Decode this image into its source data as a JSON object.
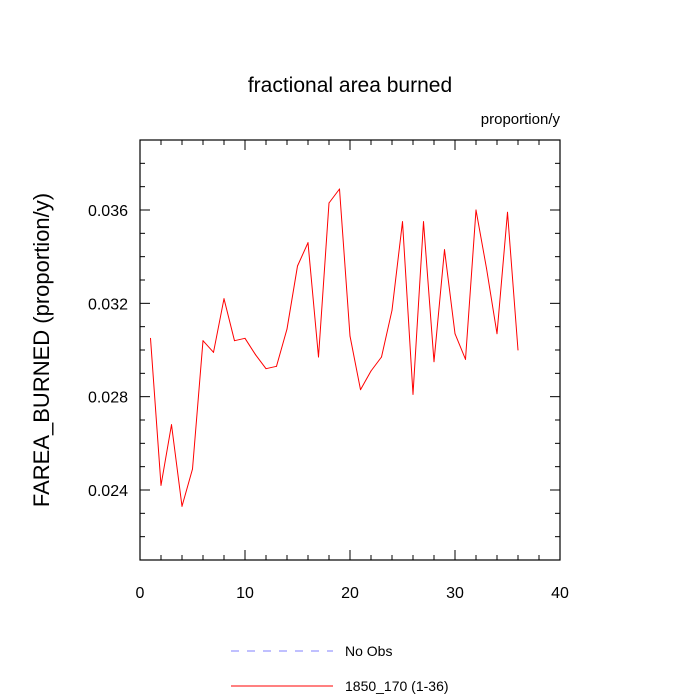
{
  "chart_data": {
    "type": "line",
    "title": "fractional area burned",
    "units_label": "proportion/y",
    "xlabel": "",
    "ylabel": "FAREA_BURNED  (proportion/y)",
    "xlim": [
      0,
      40
    ],
    "ylim": [
      0.021,
      0.039
    ],
    "x_ticks": [
      0,
      10,
      20,
      30,
      40
    ],
    "y_ticks": [
      0.024,
      0.028,
      0.032,
      0.036
    ],
    "y_tick_labels": [
      "0.024",
      "0.028",
      "0.032",
      "0.036"
    ],
    "grid": false,
    "legend_position": "bottom",
    "series": [
      {
        "name": "1850_170 (1-36)",
        "color": "#ff0000",
        "style": "solid",
        "x": [
          1,
          2,
          3,
          4,
          5,
          6,
          7,
          8,
          9,
          10,
          11,
          12,
          13,
          14,
          15,
          16,
          17,
          18,
          19,
          20,
          21,
          22,
          23,
          24,
          25,
          26,
          27,
          28,
          29,
          30,
          31,
          32,
          33,
          34,
          35,
          36
        ],
        "y": [
          0.0305,
          0.0242,
          0.0268,
          0.0233,
          0.0249,
          0.0304,
          0.0299,
          0.0322,
          0.0304,
          0.0305,
          0.0298,
          0.0292,
          0.0293,
          0.0309,
          0.0336,
          0.0346,
          0.0297,
          0.0363,
          0.0369,
          0.0306,
          0.0283,
          0.0291,
          0.0297,
          0.0317,
          0.0355,
          0.0281,
          0.0355,
          0.0295,
          0.0343,
          0.0307,
          0.0296,
          0.036,
          0.0335,
          0.0307,
          0.0359,
          0.03
        ]
      }
    ],
    "legend": [
      {
        "label": "No Obs",
        "color": "#8080ff",
        "style": "dashed"
      },
      {
        "label": "1850_170 (1-36)",
        "color": "#ff0000",
        "style": "solid"
      }
    ]
  }
}
